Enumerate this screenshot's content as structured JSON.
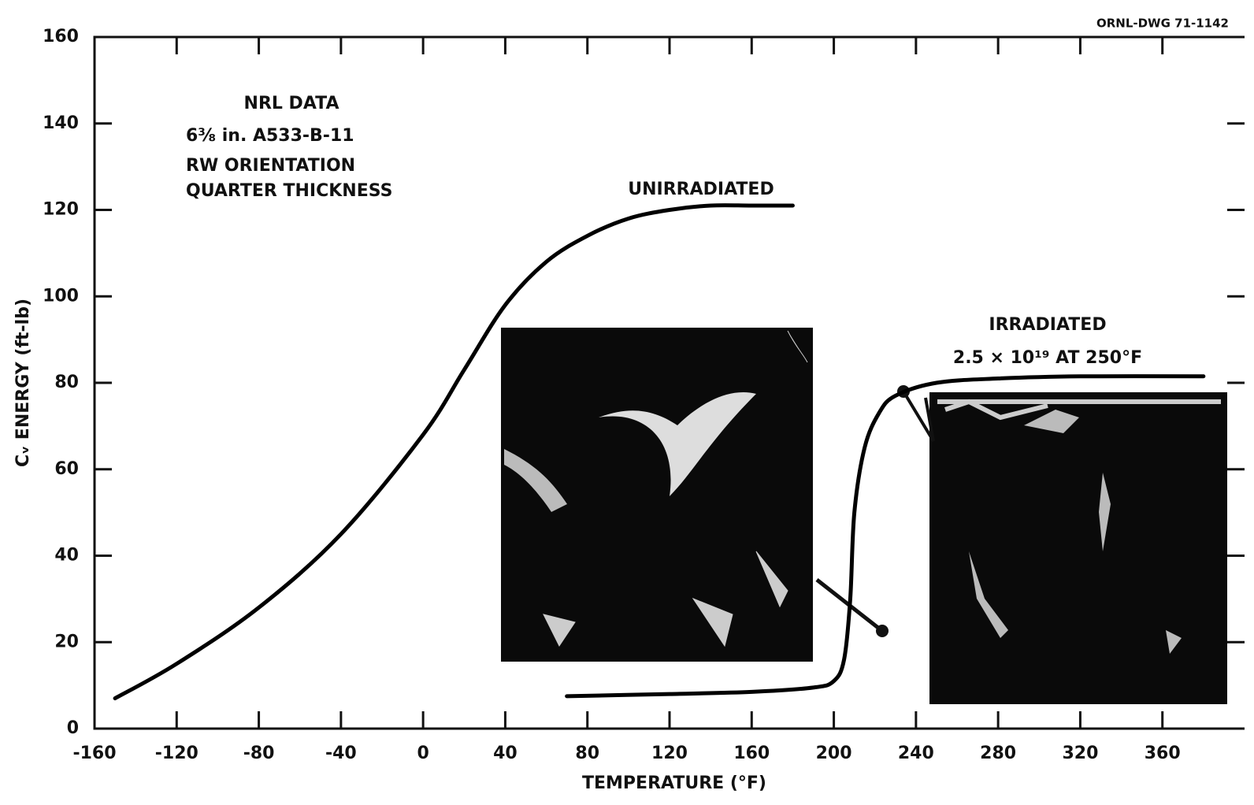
{
  "chart_data": {
    "type": "line",
    "drawing_number": "ORNL-DWG 71-1142",
    "annotations": [
      "NRL DATA",
      "6⅜ in. A533-B-11",
      "RW ORIENTATION",
      "QUARTER THICKNESS",
      "2.5 × 10¹⁹ AT 250°F"
    ],
    "x_label": "TEMPERATURE (°F)",
    "y_label": "Cᵥ ENERGY (ft-lb)",
    "xlim": [
      -160,
      400
    ],
    "xticks": [
      -160,
      -120,
      -80,
      -40,
      0,
      40,
      80,
      120,
      160,
      200,
      240,
      280,
      320,
      360
    ],
    "ylim": [
      0,
      160
    ],
    "yticks": [
      0,
      20,
      40,
      60,
      80,
      100,
      120,
      140,
      160
    ],
    "series": [
      {
        "name": "UNIRRADIATED",
        "color": "#000000",
        "x": [
          -150,
          -120,
          -80,
          -40,
          0,
          20,
          40,
          60,
          80,
          100,
          120,
          140,
          160,
          180
        ],
        "values": [
          7,
          15,
          28,
          45,
          68,
          83,
          98,
          108,
          114,
          118,
          120,
          121,
          121,
          121
        ]
      },
      {
        "name": "IRRADIATED",
        "color": "#000000",
        "x": [
          70,
          120,
          160,
          190,
          200,
          205,
          208,
          210,
          215,
          222,
          230,
          250,
          280,
          320,
          380
        ],
        "values": [
          7.5,
          8,
          8.5,
          9.5,
          11,
          16,
          30,
          50,
          65,
          73,
          77,
          80,
          81,
          81.5,
          81.5
        ]
      }
    ]
  }
}
